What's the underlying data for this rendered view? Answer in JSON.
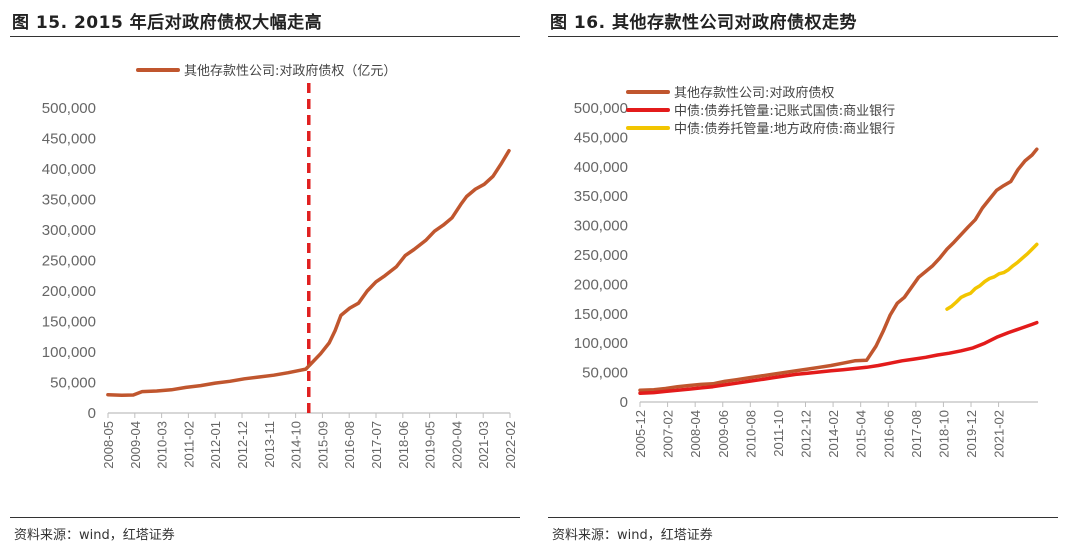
{
  "source_text": "资料来源：wind，红塔证券",
  "chart_data": [
    {
      "type": "line",
      "title": "图 15. 2015 年后对政府债权大幅走高",
      "xlabel": "",
      "ylabel": "",
      "ylim": [
        0,
        500000
      ],
      "yticks": [
        0,
        50000,
        100000,
        150000,
        200000,
        250000,
        300000,
        350000,
        400000,
        450000,
        500000
      ],
      "ytick_labels": [
        "0",
        "50,000",
        "100,000",
        "150,000",
        "200,000",
        "250,000",
        "300,000",
        "350,000",
        "400,000",
        "450,000",
        "500,000"
      ],
      "xlim": [
        2008.333,
        2022.083
      ],
      "xticks": [
        2008.333,
        2009.25,
        2010.167,
        2011.083,
        2012.0,
        2012.917,
        2013.833,
        2014.75,
        2015.667,
        2016.583,
        2017.5,
        2018.417,
        2019.333,
        2020.25,
        2021.167,
        2022.083
      ],
      "xtick_labels": [
        "2008-05",
        "2009-04",
        "2010-03",
        "2011-02",
        "2012-01",
        "2012-12",
        "2013-11",
        "2014-10",
        "2015-09",
        "2016-08",
        "2017-07",
        "2018-06",
        "2019-05",
        "2020-04",
        "2021-03",
        "2022-02"
      ],
      "legend_position": "top-center",
      "vline": {
        "x": 2015.2,
        "color": "#e02020",
        "style": "dashed"
      },
      "series": [
        {
          "name": "其他存款性公司:对政府债权（亿元）",
          "color": "#c0562e",
          "x": [
            2008.33,
            2008.8,
            2009.2,
            2009.5,
            2010.0,
            2010.5,
            2011.0,
            2011.5,
            2012.0,
            2012.5,
            2013.0,
            2013.5,
            2014.0,
            2014.5,
            2014.9,
            2015.1,
            2015.3,
            2015.6,
            2015.9,
            2016.1,
            2016.3,
            2016.6,
            2016.9,
            2017.2,
            2017.5,
            2017.8,
            2018.2,
            2018.5,
            2018.8,
            2019.2,
            2019.5,
            2019.8,
            2020.1,
            2020.4,
            2020.6,
            2020.9,
            2021.2,
            2021.5,
            2021.8,
            2022.05
          ],
          "values": [
            30000,
            29000,
            29500,
            35000,
            36000,
            38000,
            42000,
            45000,
            49000,
            52000,
            56000,
            59000,
            62000,
            66000,
            70000,
            72000,
            82000,
            97000,
            115000,
            135000,
            160000,
            172000,
            180000,
            200000,
            215000,
            225000,
            240000,
            258000,
            268000,
            283000,
            298000,
            308000,
            320000,
            342000,
            355000,
            367000,
            375000,
            388000,
            410000,
            430000
          ]
        }
      ]
    },
    {
      "type": "line",
      "title": "图 16. 其他存款性公司对政府债权走势",
      "xlabel": "",
      "ylabel": "",
      "ylim": [
        0,
        500000
      ],
      "yticks": [
        0,
        50000,
        100000,
        150000,
        200000,
        250000,
        300000,
        350000,
        400000,
        450000,
        500000
      ],
      "ytick_labels": [
        "0",
        "50,000",
        "100,000",
        "150,000",
        "200,000",
        "250,000",
        "300,000",
        "350,000",
        "400,000",
        "450,000",
        "500,000"
      ],
      "xlim": [
        2005.917,
        2022.75
      ],
      "xticks": [
        2005.917,
        2007.083,
        2008.25,
        2009.417,
        2010.583,
        2011.75,
        2012.917,
        2014.083,
        2015.25,
        2016.417,
        2017.583,
        2018.75,
        2019.917,
        2021.083
      ],
      "xtick_labels": [
        "2005-12",
        "2007-02",
        "2008-04",
        "2009-06",
        "2010-08",
        "2011-10",
        "2012-12",
        "2014-02",
        "2015-04",
        "2016-06",
        "2017-08",
        "2018-10",
        "2019-12",
        "2021-02"
      ],
      "legend_position": "top-left",
      "series": [
        {
          "name": "其他存款性公司:对政府债权",
          "color": "#c0562e",
          "x": [
            2005.917,
            2006.5,
            2007.0,
            2007.5,
            2008.0,
            2008.5,
            2009.0,
            2009.5,
            2010.0,
            2010.5,
            2011.0,
            2011.5,
            2012.0,
            2012.5,
            2013.0,
            2013.5,
            2014.0,
            2014.5,
            2015.0,
            2015.5,
            2015.9,
            2016.2,
            2016.5,
            2016.8,
            2017.1,
            2017.4,
            2017.7,
            2018.0,
            2018.3,
            2018.6,
            2018.9,
            2019.2,
            2019.5,
            2019.8,
            2020.1,
            2020.4,
            2020.7,
            2021.0,
            2021.3,
            2021.6,
            2021.9,
            2022.2,
            2022.5,
            2022.7
          ],
          "values": [
            20000,
            21000,
            23000,
            26000,
            28000,
            30000,
            31000,
            35000,
            38000,
            41000,
            44000,
            47000,
            50000,
            53000,
            56000,
            59000,
            62000,
            66000,
            70000,
            71000,
            95000,
            120000,
            148000,
            168000,
            178000,
            195000,
            212000,
            222000,
            232000,
            245000,
            260000,
            272000,
            285000,
            298000,
            310000,
            330000,
            345000,
            360000,
            368000,
            375000,
            395000,
            410000,
            420000,
            430000
          ]
        },
        {
          "name": "中债:债券托管量:记账式国债:商业银行",
          "color": "#e31b1b",
          "x": [
            2005.917,
            2006.5,
            2007.0,
            2007.5,
            2008.0,
            2008.5,
            2009.0,
            2009.5,
            2010.0,
            2010.5,
            2011.0,
            2011.5,
            2012.0,
            2012.5,
            2013.0,
            2013.5,
            2014.0,
            2014.5,
            2015.0,
            2015.5,
            2016.0,
            2016.5,
            2017.0,
            2017.5,
            2018.0,
            2018.5,
            2019.0,
            2019.5,
            2020.0,
            2020.5,
            2021.0,
            2021.5,
            2022.0,
            2022.5,
            2022.7
          ],
          "values": [
            15000,
            16000,
            18000,
            20000,
            22000,
            24000,
            26000,
            29000,
            32000,
            35000,
            38000,
            41000,
            44000,
            47000,
            49000,
            51000,
            53000,
            55000,
            57000,
            59000,
            62000,
            66000,
            70000,
            73000,
            76000,
            80000,
            83000,
            87000,
            92000,
            100000,
            110000,
            118000,
            125000,
            132000,
            135000
          ]
        },
        {
          "name": "中债:债券托管量:地方政府债:商业银行",
          "color": "#f2c500",
          "x": [
            2018.9,
            2019.1,
            2019.3,
            2019.5,
            2019.7,
            2019.9,
            2020.1,
            2020.3,
            2020.5,
            2020.7,
            2020.9,
            2021.1,
            2021.3,
            2021.5,
            2021.7,
            2021.9,
            2022.1,
            2022.3,
            2022.5,
            2022.7
          ],
          "values": [
            158000,
            163000,
            170000,
            178000,
            182000,
            185000,
            193000,
            198000,
            205000,
            210000,
            213000,
            218000,
            220000,
            225000,
            232000,
            238000,
            245000,
            252000,
            260000,
            268000
          ]
        }
      ]
    }
  ]
}
